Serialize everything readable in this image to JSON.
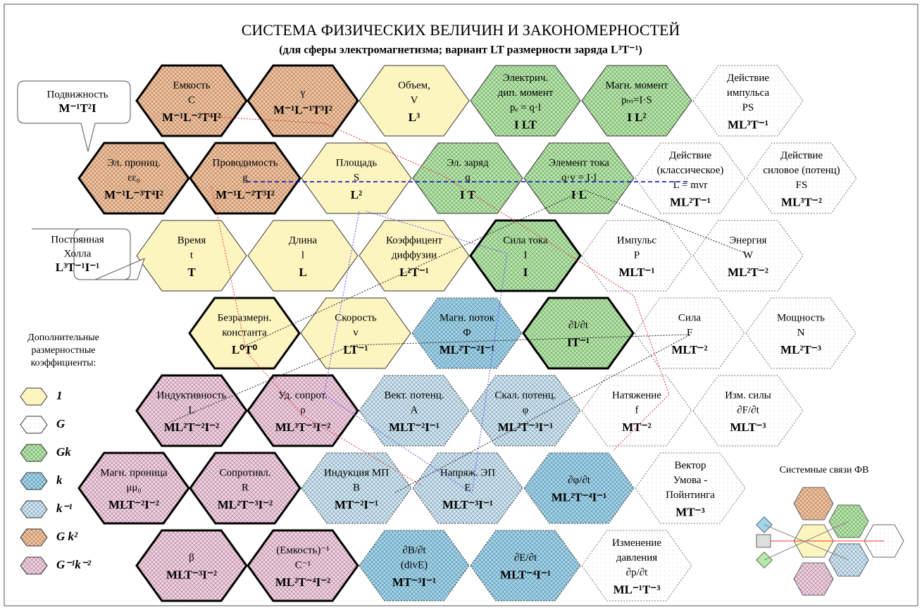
{
  "header": {
    "title": "СИСТЕМА ФИЗИЧЕСКИХ ВЕЛИЧИН И ЗАКОНОМЕРНОСТЕЙ",
    "subtitle": "(для сферы электромагнетизма; вариант LT размерности заряда L³T⁻¹)"
  },
  "callouts": [
    {
      "lines": [
        "Подвижность",
        "M⁻¹T²I"
      ]
    },
    {
      "lines": [
        "Постоянная",
        "Холла",
        "L³T⁻¹I⁻¹"
      ]
    }
  ],
  "legend": {
    "title": [
      "Дополнительные",
      "размерностные",
      "коэффициенты:"
    ],
    "items": [
      {
        "label": "1",
        "color": "#fdf5c0"
      },
      {
        "label": "G",
        "color": "#ffffff"
      },
      {
        "label": "Gk",
        "color": "#b5eaa8"
      },
      {
        "label": "k",
        "color": "#9fd6ee"
      },
      {
        "label": "k⁻¹",
        "color": "#cfe9f7"
      },
      {
        "label": "G k²",
        "color": "#f5c39c"
      },
      {
        "label": "G⁻¹k⁻²",
        "color": "#f6d0e4"
      }
    ]
  },
  "rows": [
    {
      "nodes": [
        {
          "lines": [
            "Емкость",
            "C",
            "M⁻¹L⁻²T⁴I²"
          ],
          "color": "#f5c39c",
          "bold": true
        },
        {
          "lines": [
            "γ",
            "M⁻¹L⁻¹T³I²"
          ],
          "color": "#f5c39c",
          "bold": true
        },
        {
          "lines": [
            "Объем,",
            "V",
            "L³"
          ],
          "color": "#fdf5c0",
          "bold": false
        },
        {
          "lines": [
            "Электрич.",
            "дип. момент",
            "pₑ = q·l",
            "I LT"
          ],
          "color": "#b5eaa8",
          "bold": false
        },
        {
          "lines": [
            "Магн. момент",
            "pₘ=I·S",
            "I L²"
          ],
          "color": "#b5eaa8",
          "bold": false
        },
        {
          "lines": [
            "Действие",
            "импульса",
            "PS",
            "ML³T⁻¹"
          ],
          "color": "#ffffff",
          "bold": false
        }
      ]
    },
    {
      "nodes": [
        {
          "lines": [
            "Эл. прониц.",
            "εε₀",
            "M⁻¹L⁻³T⁴I²"
          ],
          "color": "#f5c39c",
          "bold": true
        },
        {
          "lines": [
            "Проводимость",
            "g",
            "M⁻¹L⁻²T³I²"
          ],
          "color": "#f5c39c",
          "bold": true
        },
        {
          "lines": [
            "Площадь",
            "S",
            "L²"
          ],
          "color": "#fdf5c0",
          "bold": false
        },
        {
          "lines": [
            "Эл. заряд",
            "q",
            "I T"
          ],
          "color": "#b5eaa8",
          "bold": false
        },
        {
          "lines": [
            "Элемент тока",
            "q·v = I·l",
            "I L"
          ],
          "color": "#b5eaa8",
          "bold": false
        },
        {
          "lines": [
            "Действие",
            "(классическое)",
            "L = mvr",
            "ML²T⁻¹"
          ],
          "color": "#ffffff",
          "bold": false
        },
        {
          "lines": [
            "Действие",
            "силовое (потенц)",
            "FS",
            "ML³T⁻²"
          ],
          "color": "#ffffff",
          "bold": false
        }
      ]
    },
    {
      "nodes": [
        {
          "lines": [
            "Время",
            "t",
            "T"
          ],
          "color": "#fdf5c0",
          "bold": false
        },
        {
          "lines": [
            "Длина",
            "l",
            "L"
          ],
          "color": "#fdf5c0",
          "bold": false
        },
        {
          "lines": [
            "Коэффицент",
            "диффузии",
            "L²T⁻¹"
          ],
          "color": "#fdf5c0",
          "bold": false
        },
        {
          "lines": [
            "Сила тока",
            "I",
            "I"
          ],
          "color": "#b5eaa8",
          "bold": true
        },
        {
          "lines": [
            "Импульс",
            "P",
            "MLT⁻¹"
          ],
          "color": "#ffffff",
          "bold": false
        },
        {
          "lines": [
            "Энергия",
            "W",
            "ML²T⁻²"
          ],
          "color": "#ffffff",
          "bold": false
        }
      ]
    },
    {
      "nodes": [
        {
          "lines": [
            "Безразмерн.",
            "константа",
            "L⁰T⁰"
          ],
          "color": "#fdf5c0",
          "bold": true
        },
        {
          "lines": [
            "Скорость",
            "v",
            "LT⁻¹"
          ],
          "color": "#fdf5c0",
          "bold": false
        },
        {
          "lines": [
            "Магн. поток",
            "Φ",
            "ML²T⁻²I⁻¹"
          ],
          "color": "#9fd6ee",
          "bold": false
        },
        {
          "lines": [
            "∂I/∂t",
            "IT⁻¹"
          ],
          "color": "#b5eaa8",
          "bold": true
        },
        {
          "lines": [
            "Сила",
            "F",
            "MLT⁻²"
          ],
          "color": "#ffffff",
          "bold": false
        },
        {
          "lines": [
            "Мощность",
            "N",
            "ML²T⁻³"
          ],
          "color": "#ffffff",
          "bold": false
        }
      ]
    },
    {
      "nodes": [
        {
          "lines": [
            "Индуктивность",
            "L",
            "ML²T⁻²I⁻²"
          ],
          "color": "#f6d0e4",
          "bold": true
        },
        {
          "lines": [
            "Уд. сопрот.",
            "ρ",
            "ML³T⁻³I⁻²"
          ],
          "color": "#f6d0e4",
          "bold": true
        },
        {
          "lines": [
            "Вект. потенц.",
            "A",
            "MLT⁻²I⁻¹"
          ],
          "color": "#cfe9f7",
          "bold": false
        },
        {
          "lines": [
            "Скал. потенц.",
            "φ",
            "ML²T⁻³I⁻¹"
          ],
          "color": "#cfe9f7",
          "bold": false
        },
        {
          "lines": [
            "Натяжение",
            "f",
            "MT⁻²"
          ],
          "color": "#ffffff",
          "bold": false
        },
        {
          "lines": [
            "Изм. силы",
            "∂F/∂t",
            "MLT⁻³"
          ],
          "color": "#ffffff",
          "bold": false
        }
      ]
    },
    {
      "nodes": [
        {
          "lines": [
            "Магн. проница",
            "μμ₀",
            "MLT⁻²I⁻²"
          ],
          "color": "#f6d0e4",
          "bold": true
        },
        {
          "lines": [
            "Сопротивл.",
            "R",
            "ML²T⁻³I⁻²"
          ],
          "color": "#f6d0e4",
          "bold": true
        },
        {
          "lines": [
            "Индукция МП",
            "B",
            "MT⁻²I⁻¹"
          ],
          "color": "#cfe9f7",
          "bold": false
        },
        {
          "lines": [
            "Напряж. ЭП",
            "E",
            "MLT⁻³I⁻¹"
          ],
          "color": "#cfe9f7",
          "bold": false
        },
        {
          "lines": [
            "∂φ/∂t",
            "ML²T⁻⁴I⁻¹"
          ],
          "color": "#9fd6ee",
          "bold": false
        },
        {
          "lines": [
            "Вектор",
            "Умова -",
            "Пойнтинга",
            "MT⁻³"
          ],
          "color": "#ffffff",
          "bold": false
        }
      ]
    },
    {
      "nodes": [
        {
          "lines": [
            "β",
            "MLT⁻³I⁻²"
          ],
          "color": "#f6d0e4",
          "bold": true
        },
        {
          "lines": [
            "(Емкость)⁻¹",
            "C⁻¹",
            "ML²T⁻⁴I⁻²"
          ],
          "color": "#f6d0e4",
          "bold": true
        },
        {
          "lines": [
            "∂B/∂t",
            "(divE)",
            "MT⁻³I⁻¹"
          ],
          "color": "#9fd6ee",
          "bold": false
        },
        {
          "lines": [
            "∂E/∂t",
            "MLT⁻⁴I⁻¹"
          ],
          "color": "#9fd6ee",
          "bold": false
        },
        {
          "lines": [
            "Изменение",
            "давления",
            "∂p/∂t",
            "ML⁻¹T⁻³"
          ],
          "color": "#ffffff",
          "bold": false
        }
      ]
    }
  ],
  "mini": {
    "title": "Системные связи ФВ"
  }
}
